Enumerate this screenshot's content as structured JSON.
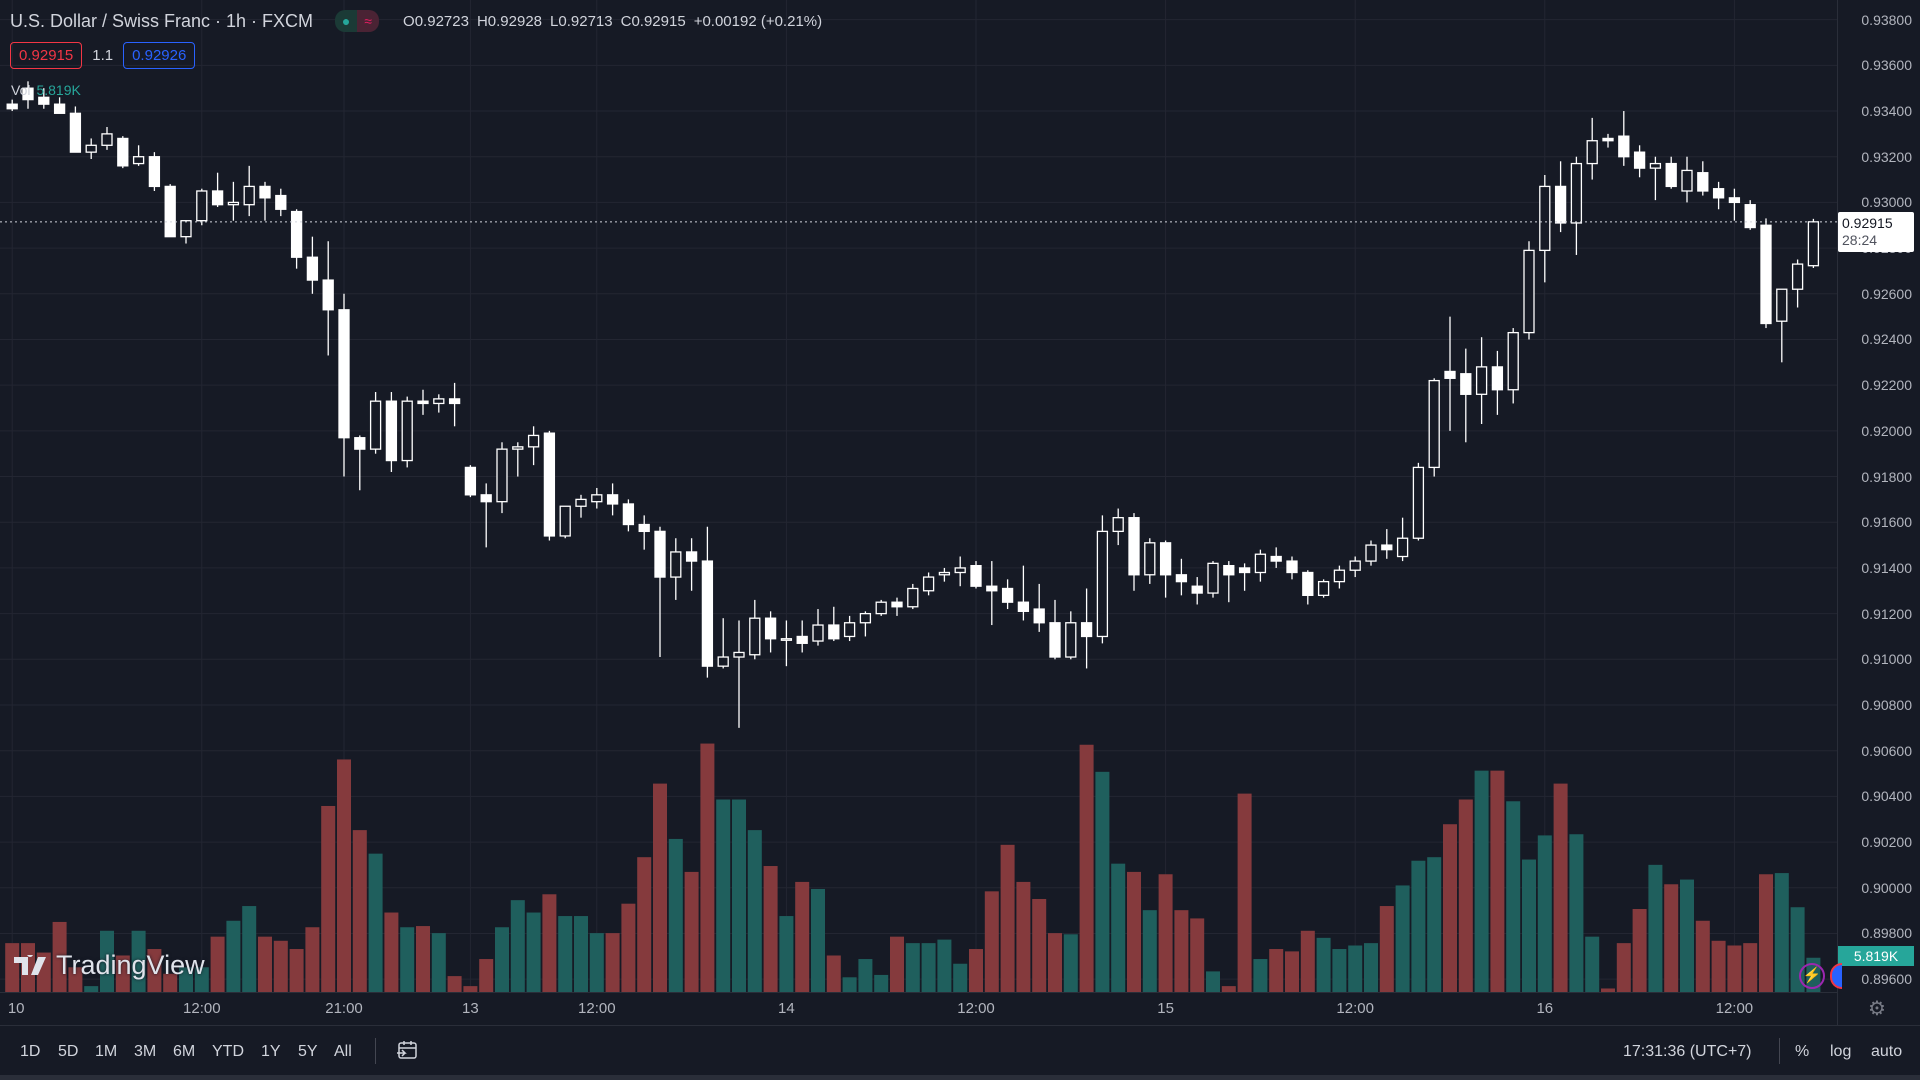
{
  "header": {
    "title": "U.S. Dollar / Swiss Franc · 1h · FXCM",
    "market_icons": [
      "dot-icon",
      "approx-icon"
    ],
    "ohlc": {
      "o_label": "O",
      "o": "0.92723",
      "h_label": "H",
      "h": "0.92928",
      "l_label": "L",
      "l": "0.92713",
      "c_label": "C",
      "c": "0.92915",
      "change": "+0.00192 (+0.21%)"
    },
    "sell_price": "0.92915",
    "spread": "1.1",
    "buy_price": "0.92926",
    "vol_label": "Vol",
    "vol_value": "5.819K"
  },
  "price_axis": {
    "ticks": [
      "0.93800",
      "0.93600",
      "0.93400",
      "0.93200",
      "0.93000",
      "0.92800",
      "0.92600",
      "0.92400",
      "0.92200",
      "0.92000",
      "0.91800",
      "0.91600",
      "0.91400",
      "0.91200",
      "0.91000",
      "0.90800",
      "0.90600",
      "0.90400",
      "0.90200",
      "0.90000",
      "0.89800",
      "0.89600"
    ],
    "current_price": "0.92915",
    "countdown": "28:24",
    "volume_label": "5.819K"
  },
  "time_axis": {
    "ticks": [
      {
        "label": "10",
        "index": 0
      },
      {
        "label": "12:00",
        "index": 12
      },
      {
        "label": "21:00",
        "index": 21
      },
      {
        "label": "13",
        "index": 29
      },
      {
        "label": "12:00",
        "index": 37
      },
      {
        "label": "14",
        "index": 49
      },
      {
        "label": "12:00",
        "index": 61
      },
      {
        "label": "15",
        "index": 73
      },
      {
        "label": "12:00",
        "index": 85
      },
      {
        "label": "16",
        "index": 97
      },
      {
        "label": "12:00",
        "index": 109
      }
    ]
  },
  "brand": "TradingView",
  "colors": {
    "up": "#26a69a",
    "down": "#ef5350",
    "vol_up": "#1f5f5d",
    "vol_down": "#853a3d",
    "bg": "#161a25",
    "grid": "#232632"
  },
  "toolbar": {
    "ranges": [
      "1D",
      "5D",
      "1M",
      "3M",
      "6M",
      "YTD",
      "1Y",
      "5Y",
      "All"
    ],
    "clock": "17:31:36 (UTC+7)",
    "percent": "%",
    "log": "log",
    "auto": "auto"
  },
  "chart_data": {
    "type": "candlestick",
    "symbol": "USDCHF",
    "interval": "1h",
    "ylim": [
      0.896,
      0.938
    ],
    "candles": [
      [
        0.9343,
        0.9345,
        0.934,
        0.9341
      ],
      [
        0.935,
        0.9353,
        0.9341,
        0.9345
      ],
      [
        0.9346,
        0.935,
        0.9341,
        0.9343
      ],
      [
        0.9343,
        0.9346,
        0.9339,
        0.9339
      ],
      [
        0.9339,
        0.9342,
        0.9322,
        0.9322
      ],
      [
        0.9322,
        0.9328,
        0.9319,
        0.9325
      ],
      [
        0.9325,
        0.9333,
        0.9323,
        0.933
      ],
      [
        0.9328,
        0.9329,
        0.9315,
        0.9316
      ],
      [
        0.9317,
        0.9325,
        0.9316,
        0.932
      ],
      [
        0.932,
        0.9322,
        0.9305,
        0.9307
      ],
      [
        0.9307,
        0.9308,
        0.9285,
        0.9285
      ],
      [
        0.9285,
        0.9292,
        0.9282,
        0.9292
      ],
      [
        0.9292,
        0.9306,
        0.929,
        0.9305
      ],
      [
        0.9305,
        0.9313,
        0.9298,
        0.9299
      ],
      [
        0.9299,
        0.9309,
        0.9292,
        0.93
      ],
      [
        0.9299,
        0.9316,
        0.9294,
        0.9307
      ],
      [
        0.9307,
        0.9309,
        0.9292,
        0.9302
      ],
      [
        0.9303,
        0.9306,
        0.9294,
        0.9297
      ],
      [
        0.9296,
        0.9297,
        0.9271,
        0.9276
      ],
      [
        0.9276,
        0.9285,
        0.926,
        0.9266
      ],
      [
        0.9266,
        0.9283,
        0.9233,
        0.9253
      ],
      [
        0.9253,
        0.926,
        0.918,
        0.9197
      ],
      [
        0.9197,
        0.9198,
        0.9174,
        0.9192
      ],
      [
        0.9192,
        0.9217,
        0.919,
        0.9213
      ],
      [
        0.9213,
        0.9217,
        0.9182,
        0.9187
      ],
      [
        0.9187,
        0.9215,
        0.9184,
        0.9213
      ],
      [
        0.9213,
        0.9218,
        0.9207,
        0.9212
      ],
      [
        0.9212,
        0.9216,
        0.9208,
        0.9214
      ],
      [
        0.9214,
        0.9221,
        0.9202,
        0.9212
      ],
      [
        0.9184,
        0.9185,
        0.9171,
        0.9172
      ],
      [
        0.9172,
        0.9177,
        0.9149,
        0.9169
      ],
      [
        0.9169,
        0.9195,
        0.9164,
        0.9192
      ],
      [
        0.9192,
        0.9195,
        0.918,
        0.9193
      ],
      [
        0.9193,
        0.9202,
        0.9185,
        0.9198
      ],
      [
        0.9199,
        0.92,
        0.9152,
        0.9154
      ],
      [
        0.9154,
        0.9167,
        0.9153,
        0.9167
      ],
      [
        0.9167,
        0.9172,
        0.9162,
        0.917
      ],
      [
        0.9169,
        0.9175,
        0.9166,
        0.9172
      ],
      [
        0.9172,
        0.9177,
        0.9163,
        0.9168
      ],
      [
        0.9168,
        0.917,
        0.9156,
        0.9159
      ],
      [
        0.9159,
        0.9163,
        0.9148,
        0.9156
      ],
      [
        0.9156,
        0.9158,
        0.9101,
        0.9136
      ],
      [
        0.9136,
        0.9153,
        0.9126,
        0.9147
      ],
      [
        0.9147,
        0.9153,
        0.913,
        0.9143
      ],
      [
        0.9143,
        0.9158,
        0.9092,
        0.9097
      ],
      [
        0.9097,
        0.9118,
        0.9096,
        0.9101
      ],
      [
        0.9101,
        0.9117,
        0.907,
        0.9103
      ],
      [
        0.9102,
        0.9126,
        0.91,
        0.9118
      ],
      [
        0.9118,
        0.9121,
        0.9103,
        0.9109
      ],
      [
        0.9109,
        0.9117,
        0.9097,
        0.9109
      ],
      [
        0.911,
        0.9117,
        0.9103,
        0.9107
      ],
      [
        0.9108,
        0.9122,
        0.9106,
        0.9115
      ],
      [
        0.9115,
        0.9123,
        0.9108,
        0.9109
      ],
      [
        0.911,
        0.9119,
        0.9108,
        0.9116
      ],
      [
        0.9116,
        0.9121,
        0.911,
        0.912
      ],
      [
        0.912,
        0.9126,
        0.9119,
        0.9125
      ],
      [
        0.9125,
        0.9127,
        0.9119,
        0.9123
      ],
      [
        0.9123,
        0.9133,
        0.9122,
        0.9131
      ],
      [
        0.913,
        0.9138,
        0.9128,
        0.9136
      ],
      [
        0.9137,
        0.914,
        0.9134,
        0.9138
      ],
      [
        0.9138,
        0.9145,
        0.9132,
        0.914
      ],
      [
        0.9141,
        0.9143,
        0.9131,
        0.9132
      ],
      [
        0.9132,
        0.9143,
        0.9115,
        0.913
      ],
      [
        0.9131,
        0.9135,
        0.9122,
        0.9125
      ],
      [
        0.9125,
        0.9141,
        0.9117,
        0.9121
      ],
      [
        0.9122,
        0.9133,
        0.9112,
        0.9116
      ],
      [
        0.9116,
        0.9126,
        0.91,
        0.9101
      ],
      [
        0.9101,
        0.9121,
        0.91,
        0.9116
      ],
      [
        0.9116,
        0.9131,
        0.9096,
        0.911
      ],
      [
        0.911,
        0.9163,
        0.9107,
        0.9156
      ],
      [
        0.9156,
        0.9166,
        0.915,
        0.9162
      ],
      [
        0.9162,
        0.9164,
        0.913,
        0.9137
      ],
      [
        0.9137,
        0.9153,
        0.9133,
        0.9151
      ],
      [
        0.9151,
        0.9152,
        0.9127,
        0.9137
      ],
      [
        0.9137,
        0.9144,
        0.9128,
        0.9134
      ],
      [
        0.9132,
        0.9136,
        0.9124,
        0.9129
      ],
      [
        0.9129,
        0.9143,
        0.9127,
        0.9142
      ],
      [
        0.9141,
        0.9143,
        0.9125,
        0.9137
      ],
      [
        0.914,
        0.9142,
        0.913,
        0.9138
      ],
      [
        0.9138,
        0.9148,
        0.9134,
        0.9146
      ],
      [
        0.9145,
        0.9149,
        0.914,
        0.9143
      ],
      [
        0.9143,
        0.9145,
        0.9135,
        0.9138
      ],
      [
        0.9138,
        0.9139,
        0.9124,
        0.9128
      ],
      [
        0.9128,
        0.9135,
        0.9127,
        0.9134
      ],
      [
        0.9134,
        0.9141,
        0.9131,
        0.9139
      ],
      [
        0.9139,
        0.9145,
        0.9136,
        0.9143
      ],
      [
        0.9143,
        0.9152,
        0.9141,
        0.915
      ],
      [
        0.915,
        0.9157,
        0.9144,
        0.9148
      ],
      [
        0.9145,
        0.9162,
        0.9143,
        0.9153
      ],
      [
        0.9153,
        0.9186,
        0.9152,
        0.9184
      ],
      [
        0.9184,
        0.9223,
        0.918,
        0.9222
      ],
      [
        0.9226,
        0.925,
        0.92,
        0.9223
      ],
      [
        0.9225,
        0.9236,
        0.9195,
        0.9216
      ],
      [
        0.9216,
        0.9241,
        0.9203,
        0.9228
      ],
      [
        0.9228,
        0.9235,
        0.9207,
        0.9218
      ],
      [
        0.9218,
        0.9245,
        0.9212,
        0.9243
      ],
      [
        0.9243,
        0.9283,
        0.924,
        0.9279
      ],
      [
        0.9279,
        0.9312,
        0.9265,
        0.9307
      ],
      [
        0.9307,
        0.9318,
        0.9287,
        0.9291
      ],
      [
        0.9291,
        0.932,
        0.9277,
        0.9317
      ],
      [
        0.9317,
        0.9337,
        0.931,
        0.9327
      ],
      [
        0.9328,
        0.933,
        0.9324,
        0.9327
      ],
      [
        0.9329,
        0.934,
        0.9316,
        0.932
      ],
      [
        0.9322,
        0.9325,
        0.9311,
        0.9315
      ],
      [
        0.9315,
        0.932,
        0.9301,
        0.9317
      ],
      [
        0.9317,
        0.932,
        0.9306,
        0.9307
      ],
      [
        0.9305,
        0.932,
        0.93,
        0.9314
      ],
      [
        0.9313,
        0.9318,
        0.9303,
        0.9305
      ],
      [
        0.9306,
        0.9309,
        0.9297,
        0.9302
      ],
      [
        0.9302,
        0.9306,
        0.9292,
        0.93
      ],
      [
        0.9299,
        0.9301,
        0.9288,
        0.9289
      ],
      [
        0.929,
        0.9293,
        0.9245,
        0.9247
      ],
      [
        0.9248,
        0.9262,
        0.923,
        0.9262
      ],
      [
        0.9262,
        0.9275,
        0.9254,
        0.9273
      ],
      [
        0.92723,
        0.92928,
        0.92713,
        0.92915
      ]
    ],
    "volume_k": [
      8.3,
      8.3,
      6.7,
      11.9,
      4.2,
      1.0,
      10.4,
      6.2,
      10.4,
      7.3,
      3.1,
      4.2,
      4.2,
      9.4,
      12.1,
      14.6,
      9.4,
      8.7,
      7.3,
      11.0,
      31.6,
      39.5,
      27.5,
      23.5,
      13.5,
      11.0,
      11.2,
      10.0,
      2.7,
      1.0,
      5.6,
      11.0,
      15.6,
      13.5,
      16.6,
      12.9,
      12.9,
      10.0,
      10.0,
      15.0,
      22.9,
      35.4,
      26.0,
      20.4,
      42.2,
      32.7,
      32.7,
      27.5,
      21.4,
      12.9,
      18.7,
      17.5,
      6.2,
      2.5,
      5.6,
      2.9,
      9.4,
      8.3,
      8.3,
      8.9,
      4.8,
      7.3,
      17.1,
      25.0,
      18.7,
      15.8,
      10.0,
      9.8,
      42.0,
      37.4,
      21.8,
      20.4,
      13.9,
      20.0,
      13.9,
      12.5,
      3.5,
      1.0,
      33.7,
      5.6,
      7.3,
      6.9,
      10.4,
      9.2,
      7.3,
      7.9,
      8.3,
      14.6,
      18.1,
      22.3,
      22.9,
      28.5,
      32.7,
      37.6,
      37.6,
      32.4,
      22.5,
      26.6,
      35.4,
      26.8,
      9.4,
      0.6,
      8.3,
      14.1,
      21.6,
      18.3,
      19.1,
      12.1,
      8.7,
      7.9,
      8.3,
      20.0,
      20.2,
      14.4,
      5.819
    ]
  }
}
